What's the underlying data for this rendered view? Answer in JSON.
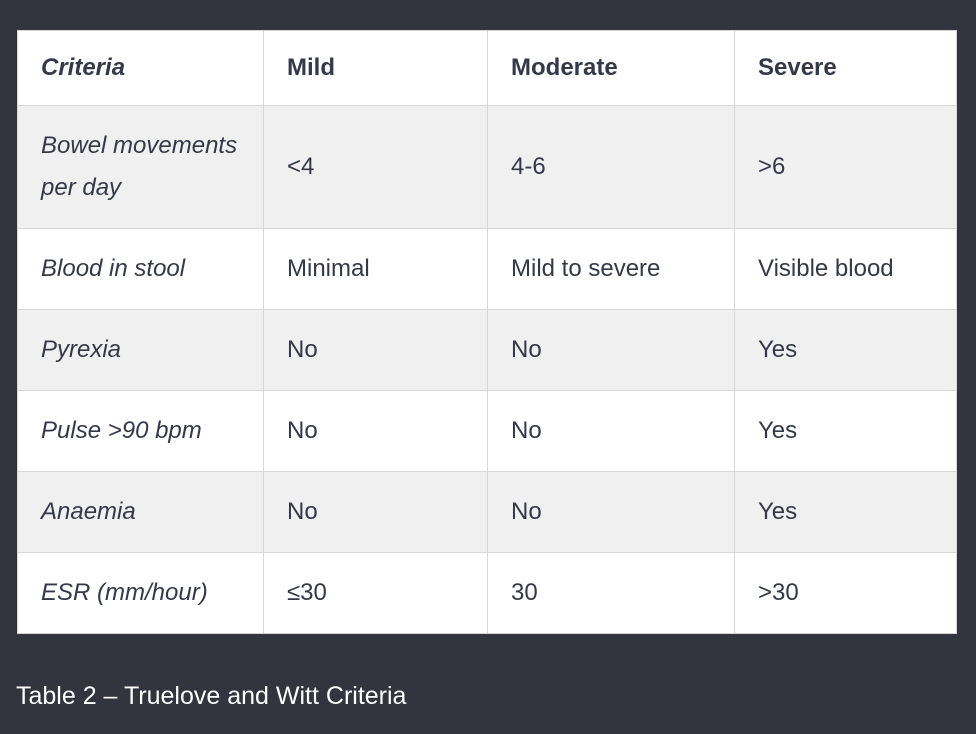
{
  "colors": {
    "page_background": "#32343E",
    "row_background": "#FFFFFF",
    "row_alt_background": "#F0F0F1",
    "cell_border": "#D6D6D8",
    "table_text": "#353848",
    "caption_text": "#FDFDFE"
  },
  "table": {
    "columns": [
      "Criteria",
      "Mild",
      "Moderate",
      "Severe"
    ],
    "rows": [
      [
        "Bowel movements per day",
        "<4",
        "4-6",
        ">6"
      ],
      [
        "Blood in stool",
        "Minimal",
        "Mild to severe",
        "Visible blood"
      ],
      [
        "Pyrexia",
        "No",
        "No",
        "Yes"
      ],
      [
        "Pulse >90 bpm",
        "No",
        "No",
        "Yes"
      ],
      [
        "Anaemia",
        "No",
        "No",
        "Yes"
      ],
      [
        "ESR (mm/hour)",
        "≤30",
        "30",
        ">30"
      ]
    ]
  },
  "caption": {
    "text": "Table 2 – Truelove and Witt Criteria"
  }
}
